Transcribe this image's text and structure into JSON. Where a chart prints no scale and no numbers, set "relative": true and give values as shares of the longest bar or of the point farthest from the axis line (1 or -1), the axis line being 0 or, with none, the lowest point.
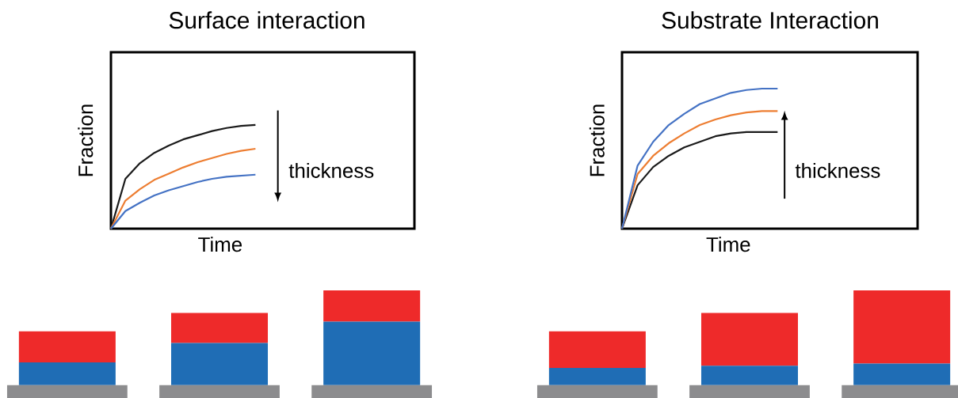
{
  "chart_data": [
    {
      "type": "line",
      "title": "Surface interaction",
      "xlabel": "Time",
      "ylabel": "Fraction",
      "relative": true,
      "annotations": [
        "thickness"
      ],
      "categories": [
        null,
        null,
        null,
        null,
        null,
        null,
        null,
        null,
        null,
        null,
        null,
        null,
        null,
        null,
        null,
        null,
        null,
        null,
        null,
        null,
        null,
        null
      ],
      "series": [
        {
          "color": "#1a1a1a",
          "values": [
            0,
            0.48,
            0.63,
            0.73,
            0.8,
            0.86,
            0.9,
            0.94,
            0.97,
            0.99,
            1,
            null,
            null,
            null,
            null,
            null,
            null,
            null,
            null,
            null,
            null,
            null
          ]
        },
        {
          "color": "#ed7d31",
          "values": [
            0,
            0.27,
            0.38,
            0.47,
            0.53,
            0.59,
            0.64,
            0.68,
            0.72,
            0.75,
            0.77,
            null,
            null,
            null,
            null,
            null,
            null,
            null,
            null,
            null,
            null,
            null
          ]
        },
        {
          "color": "#4472c4",
          "values": [
            0,
            0.17,
            0.25,
            0.32,
            0.37,
            0.41,
            0.45,
            0.48,
            0.5,
            0.51,
            0.52,
            null,
            null,
            null,
            null,
            null,
            null,
            null,
            null,
            null,
            null,
            null
          ]
        }
      ]
    },
    {
      "type": "line",
      "title": "Substrate Interaction",
      "xlabel": "Time",
      "ylabel": "Fraction",
      "relative": true,
      "annotations": [
        "thickness"
      ],
      "categories": [
        null,
        null,
        null,
        null,
        null,
        null,
        null,
        null,
        null,
        null,
        null,
        null,
        null,
        null,
        null,
        null,
        null,
        null,
        null,
        null
      ],
      "series": [
        {
          "color": "#1a1a1a",
          "values": [
            0,
            0.31,
            0.44,
            0.52,
            0.58,
            0.62,
            0.66,
            0.68,
            0.69,
            0.69,
            0.69,
            null,
            null,
            null,
            null,
            null,
            null,
            null,
            null,
            null
          ]
        },
        {
          "color": "#ed7d31",
          "values": [
            0,
            0.39,
            0.52,
            0.61,
            0.68,
            0.74,
            0.78,
            0.81,
            0.83,
            0.84,
            0.84,
            null,
            null,
            null,
            null,
            null,
            null,
            null,
            null,
            null
          ]
        },
        {
          "color": "#4472c4",
          "values": [
            0,
            0.45,
            0.62,
            0.74,
            0.82,
            0.89,
            0.93,
            0.97,
            0.99,
            1,
            1,
            null,
            null,
            null,
            null,
            null,
            null,
            null,
            null,
            null
          ]
        }
      ]
    },
    {
      "type": "bar",
      "stacked": true,
      "relative": true,
      "categories": [
        null,
        null,
        null
      ],
      "series": [
        {
          "color": "#8c8c8e",
          "values": [
            0.12,
            0.12,
            0.12
          ]
        },
        {
          "color": "#1f6db5",
          "values": [
            0.21,
            0.39,
            0.59
          ]
        },
        {
          "color": "#ee2a2a",
          "values": [
            0.29,
            0.28,
            0.29
          ]
        }
      ]
    },
    {
      "type": "bar",
      "stacked": true,
      "relative": true,
      "categories": [
        null,
        null,
        null
      ],
      "series": [
        {
          "color": "#8c8c8e",
          "values": [
            0.12,
            0.12,
            0.12
          ]
        },
        {
          "color": "#1f6db5",
          "values": [
            0.16,
            0.18,
            0.2
          ]
        },
        {
          "color": "#ee2a2a",
          "values": [
            0.34,
            0.49,
            0.68
          ]
        }
      ]
    }
  ]
}
